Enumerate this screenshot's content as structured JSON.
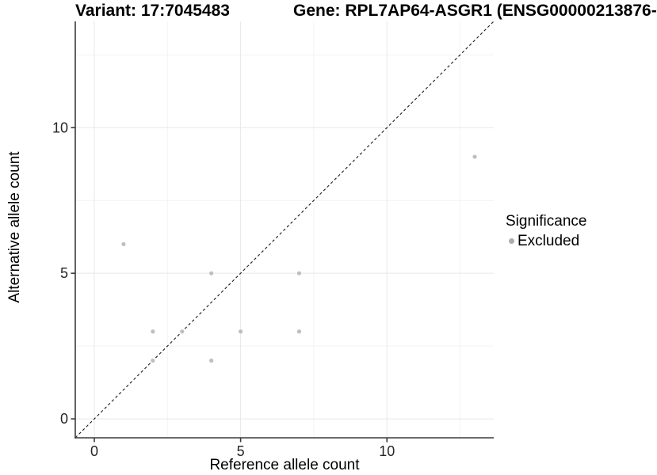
{
  "chart_data": {
    "type": "scatter",
    "title_variant": "Variant: 17:7045483",
    "title_gene": "Gene: RPL7AP64-ASGR1 (ENSG00000213876-",
    "xlabel": "Reference allele count",
    "ylabel": "Alternative allele count",
    "xlim": [
      -0.65,
      13.65
    ],
    "ylim": [
      -0.65,
      13.65
    ],
    "x_ticks": [
      0,
      5,
      10
    ],
    "y_ticks": [
      0,
      5,
      10
    ],
    "minor_gridlines": [
      2.5,
      7.5,
      12.5
    ],
    "grid": true,
    "legend_title": "Significance",
    "legend_position": "right",
    "identity_line": {
      "style": "dashed",
      "equation": "y = x",
      "from": [
        -0.65,
        -0.65
      ],
      "to": [
        13.65,
        13.65
      ]
    },
    "series": [
      {
        "name": "Excluded",
        "color": "#bfbfbf",
        "points": [
          [
            1,
            6
          ],
          [
            2,
            2
          ],
          [
            2,
            3
          ],
          [
            3,
            3
          ],
          [
            4,
            2
          ],
          [
            4,
            5
          ],
          [
            5,
            3
          ],
          [
            7,
            3
          ],
          [
            7,
            5
          ],
          [
            13,
            9
          ]
        ]
      }
    ]
  },
  "legend": {
    "title": "Significance",
    "items": [
      {
        "label": "Excluded",
        "color": "#adadad"
      }
    ]
  },
  "colors": {
    "point": "#bfbfbf",
    "legend_key": "#adadad",
    "axis_line": "#3a3a3a",
    "tick_text": "#262626",
    "grid_major": "#e8e8e8",
    "grid_minor": "#f3f3f3",
    "identity_line": "#1a1a1a"
  }
}
